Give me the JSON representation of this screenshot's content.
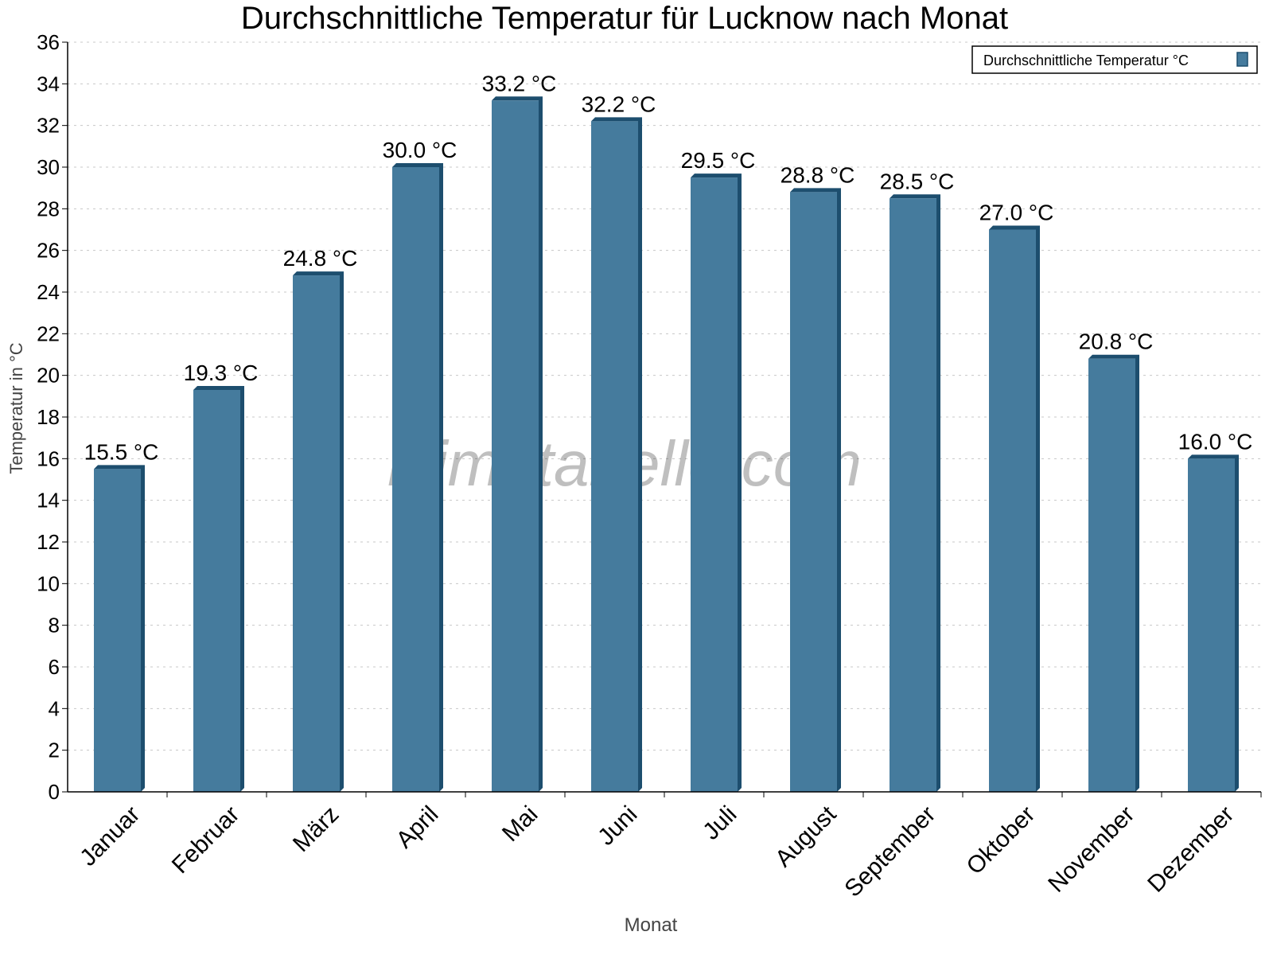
{
  "chart_data": {
    "type": "bar",
    "title": "Durchschnittliche Temperatur für Lucknow nach Monat",
    "xlabel": "Monat",
    "ylabel": "Temperatur in °C",
    "categories": [
      "Januar",
      "Februar",
      "März",
      "April",
      "Mai",
      "Juni",
      "Juli",
      "August",
      "September",
      "Oktober",
      "November",
      "Dezember"
    ],
    "series": [
      {
        "name": "Durchschnittliche Temperatur °C",
        "values": [
          15.5,
          19.3,
          24.8,
          30.0,
          33.2,
          32.2,
          29.5,
          28.8,
          28.5,
          27.0,
          20.8,
          16.0
        ],
        "color": "#457b9d",
        "shade_color": "#1d4e6e"
      }
    ],
    "data_labels": [
      "15.5 °C",
      "19.3 °C",
      "24.8 °C",
      "30.0 °C",
      "33.2 °C",
      "32.2 °C",
      "29.5 °C",
      "28.8 °C",
      "28.5 °C",
      "27.0 °C",
      "20.8 °C",
      "16.0 °C"
    ],
    "ylim": [
      0,
      36
    ],
    "yticks": [
      0,
      2,
      4,
      6,
      8,
      10,
      12,
      14,
      16,
      18,
      20,
      22,
      24,
      26,
      28,
      30,
      32,
      34,
      36
    ],
    "grid": true,
    "legend_position": "top-right",
    "watermark": "klimatabelle.com"
  }
}
